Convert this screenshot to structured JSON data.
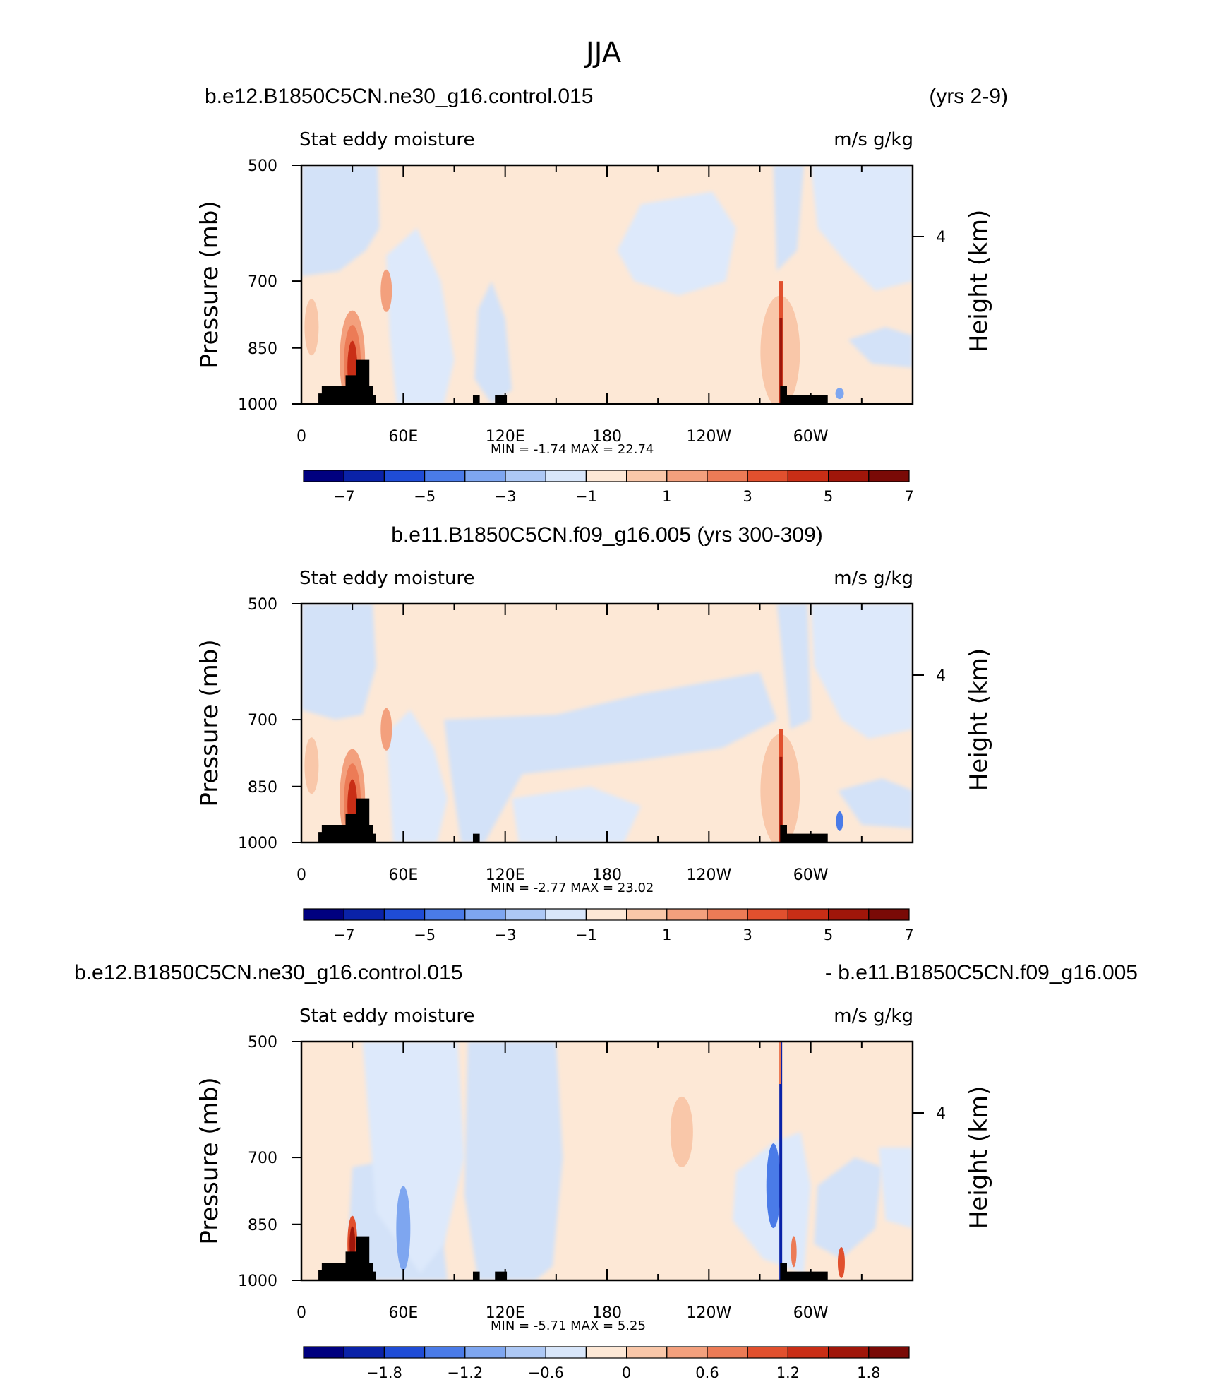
{
  "figure_title": "JJA",
  "panels": [
    {
      "title_left": "b.e12.B1850C5CN.ne30_g16.control.015",
      "title_right": "(yrs 2-9)",
      "title_center": "",
      "subtitle_left": "Stat eddy moisture",
      "subtitle_right": "m/s g/kg",
      "min_max": "MIN =   -1.74   MAX =   22.74"
    },
    {
      "title_left": "",
      "title_right": "",
      "title_center": "b.e11.B1850C5CN.f09_g16.005 (yrs 300-309)",
      "subtitle_left": "Stat eddy moisture",
      "subtitle_right": "m/s g/kg",
      "min_max": "MIN =   -2.77   MAX =   23.02"
    },
    {
      "title_left": "b.e12.B1850C5CN.ne30_g16.control.015",
      "title_right": "- b.e11.B1850C5CN.f09_g16.005",
      "title_center": "",
      "subtitle_left": "Stat eddy moisture",
      "subtitle_right": "m/s g/kg",
      "min_max": "MIN =   -5.71   MAX =   5.25"
    }
  ],
  "chart_data": [
    {
      "type": "heatmap",
      "title": "b.e12.B1850C5CN.ne30_g16.control.015 (yrs 2-9)",
      "variable": "Stat eddy moisture",
      "units": "m/s g/kg",
      "xlabel": "",
      "ylabel": "Pressure (mb)",
      "y2label": "Height (km)",
      "x_ticks": [
        "0",
        "60E",
        "120E",
        "180",
        "120W",
        "60W"
      ],
      "y_ticks": [
        "500",
        "700",
        "850",
        "1000"
      ],
      "y2_ticks": [
        "4"
      ],
      "xlim": [
        0,
        360
      ],
      "ylim": [
        1000,
        500
      ],
      "colorbar": {
        "labels": [
          "-7",
          "-5",
          "-3",
          "-1",
          "1",
          "3",
          "5",
          "7"
        ],
        "colors": [
          "#00007f",
          "#0a22a8",
          "#1f4cd6",
          "#4a7be8",
          "#7ea6f0",
          "#adc8f5",
          "#d8e6fa",
          "#fde8d6",
          "#f9c7a9",
          "#f3a07d",
          "#ec7b56",
          "#e1502e",
          "#c92e16",
          "#a0160a",
          "#7a0a06"
        ]
      },
      "min": -1.74,
      "max": 22.74,
      "features": [
        {
          "lon": 30,
          "p_top": 780,
          "peak": 7
        },
        {
          "lon": 300,
          "p_top": 700,
          "peak": 7
        }
      ]
    },
    {
      "type": "heatmap",
      "title": "b.e11.B1850C5CN.f09_g16.005 (yrs 300-309)",
      "variable": "Stat eddy moisture",
      "units": "m/s g/kg",
      "xlabel": "",
      "ylabel": "Pressure (mb)",
      "y2label": "Height (km)",
      "x_ticks": [
        "0",
        "60E",
        "120E",
        "180",
        "120W",
        "60W"
      ],
      "y_ticks": [
        "500",
        "700",
        "850",
        "1000"
      ],
      "y2_ticks": [
        "4"
      ],
      "xlim": [
        0,
        360
      ],
      "ylim": [
        1000,
        500
      ],
      "colorbar": {
        "labels": [
          "-7",
          "-5",
          "-3",
          "-1",
          "1",
          "3",
          "5",
          "7"
        ],
        "colors": [
          "#00007f",
          "#0a22a8",
          "#1f4cd6",
          "#4a7be8",
          "#7ea6f0",
          "#adc8f5",
          "#d8e6fa",
          "#fde8d6",
          "#f9c7a9",
          "#f3a07d",
          "#ec7b56",
          "#e1502e",
          "#c92e16",
          "#a0160a",
          "#7a0a06"
        ]
      },
      "min": -2.77,
      "max": 23.02,
      "features": [
        {
          "lon": 30,
          "p_top": 800,
          "peak": 7
        },
        {
          "lon": 300,
          "p_top": 700,
          "peak": 7
        }
      ]
    },
    {
      "type": "heatmap",
      "title": "b.e12.B1850C5CN.ne30_g16.control.015 - b.e11.B1850C5CN.f09_g16.005",
      "variable": "Stat eddy moisture",
      "units": "m/s g/kg",
      "xlabel": "",
      "ylabel": "Pressure (mb)",
      "y2label": "Height (km)",
      "x_ticks": [
        "0",
        "60E",
        "120E",
        "180",
        "120W",
        "60W"
      ],
      "y_ticks": [
        "500",
        "700",
        "850",
        "1000"
      ],
      "y2_ticks": [
        "4"
      ],
      "xlim": [
        0,
        360
      ],
      "ylim": [
        1000,
        500
      ],
      "colorbar": {
        "labels": [
          "-1.8",
          "-1.2",
          "-0.6",
          "0",
          "0.6",
          "1.2",
          "1.8"
        ],
        "colors": [
          "#00007f",
          "#0a22a8",
          "#1f4cd6",
          "#4a7be8",
          "#7ea6f0",
          "#adc8f5",
          "#d8e6fa",
          "#fde8d6",
          "#f9c7a9",
          "#f3a07d",
          "#ec7b56",
          "#e1502e",
          "#c92e16",
          "#a0160a",
          "#7a0a06"
        ]
      },
      "min": -5.71,
      "max": 5.25,
      "features": [
        {
          "lon": 30,
          "p_top": 850,
          "peak": 1.8
        },
        {
          "lon": 300,
          "p_top": 500,
          "peak": -2.4
        }
      ]
    }
  ]
}
